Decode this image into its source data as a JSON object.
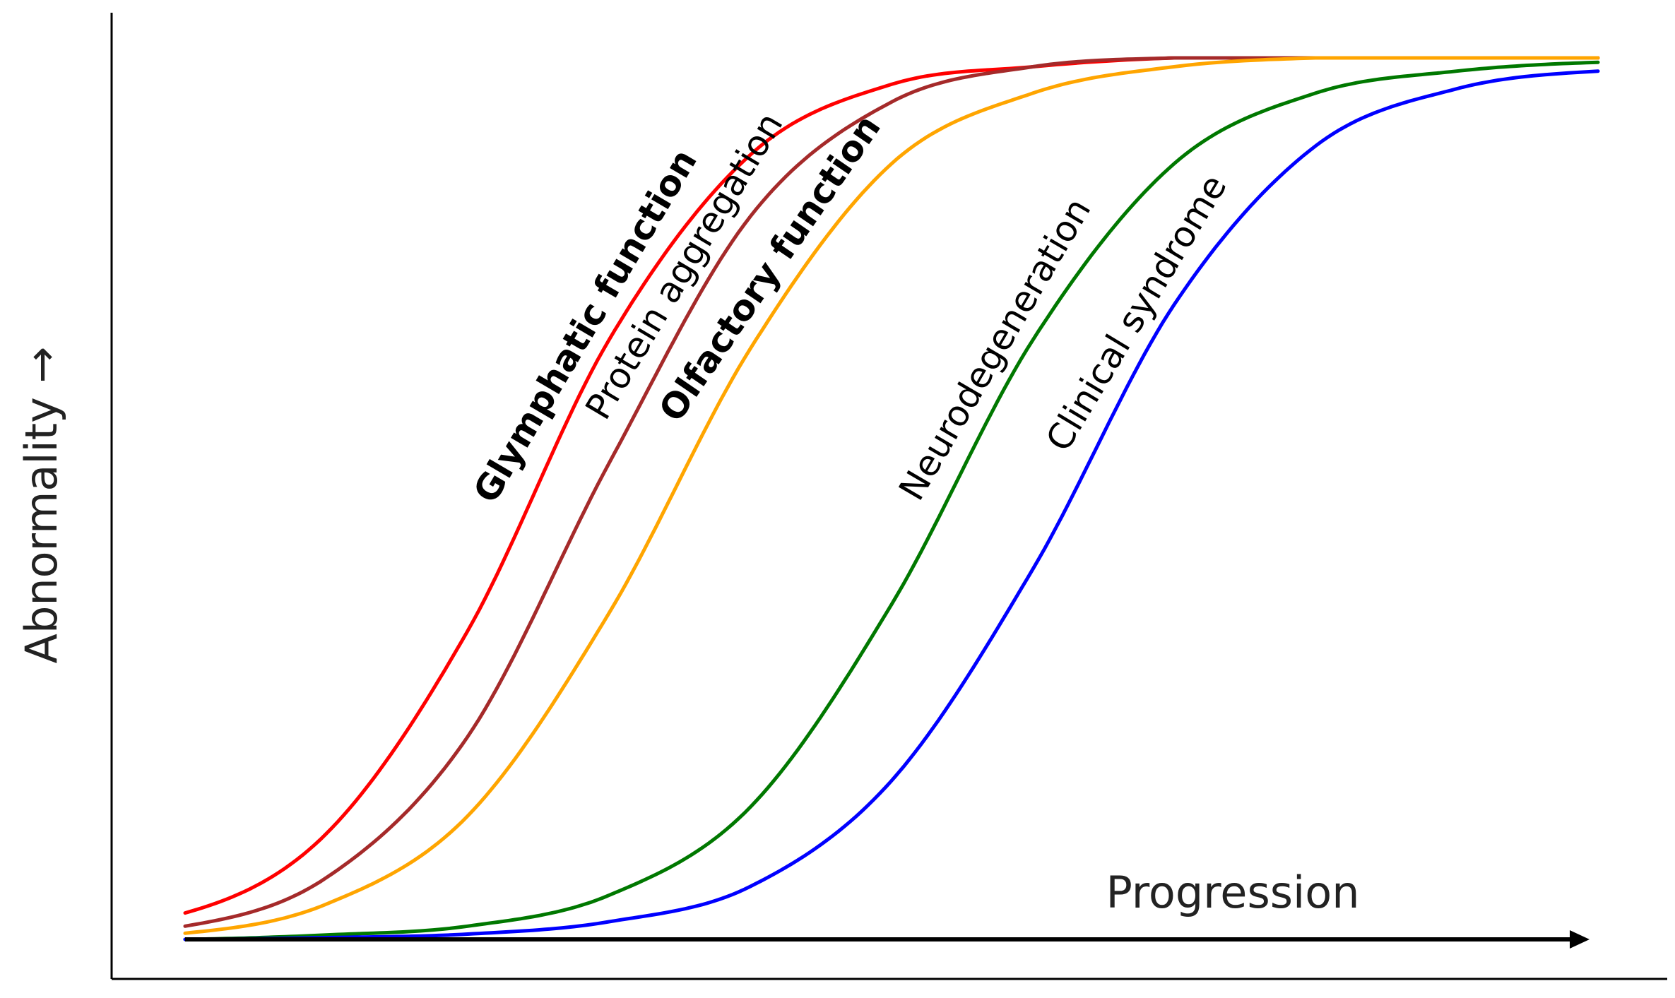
{
  "chart_data": {
    "type": "line",
    "title": "",
    "xlabel": "Progression",
    "ylabel": "Abnormality →",
    "xlim": [
      0,
      1
    ],
    "ylim": [
      0,
      1
    ],
    "grid": false,
    "legend": "none",
    "series": [
      {
        "name": "Glymphatic function",
        "color": "#ff0000",
        "bold": true,
        "x": [
          0,
          0.1,
          0.2,
          0.3,
          0.4,
          0.5,
          0.6,
          0.7,
          0.8,
          0.9,
          1.0
        ],
        "y": [
          0.03,
          0.12,
          0.35,
          0.68,
          0.89,
          0.97,
          0.99,
          1.0,
          1.0,
          1.0,
          1.0
        ]
      },
      {
        "name": "Protein aggregation",
        "color": "#a52a2a",
        "bold": false,
        "x": [
          0,
          0.1,
          0.2,
          0.3,
          0.4,
          0.5,
          0.6,
          0.7,
          0.8,
          0.9,
          1.0
        ],
        "y": [
          0.015,
          0.07,
          0.23,
          0.54,
          0.82,
          0.95,
          0.99,
          1.0,
          1.0,
          1.0,
          1.0
        ]
      },
      {
        "name": "Olfactory function",
        "color": "#ffa500",
        "bold": true,
        "x": [
          0,
          0.1,
          0.2,
          0.3,
          0.4,
          0.5,
          0.6,
          0.7,
          0.8,
          0.9,
          1.0
        ],
        "y": [
          0.007,
          0.04,
          0.14,
          0.37,
          0.67,
          0.88,
          0.96,
          0.99,
          1.0,
          1.0,
          1.0
        ]
      },
      {
        "name": "Neurodegeneration",
        "color": "#007800",
        "bold": false,
        "x": [
          0,
          0.1,
          0.2,
          0.3,
          0.4,
          0.5,
          0.6,
          0.7,
          0.8,
          0.9,
          1.0
        ],
        "y": [
          0.0,
          0.005,
          0.015,
          0.05,
          0.15,
          0.38,
          0.68,
          0.88,
          0.96,
          0.985,
          0.995
        ]
      },
      {
        "name": "Clinical syndrome",
        "color": "#0000ff",
        "bold": false,
        "x": [
          0,
          0.1,
          0.2,
          0.3,
          0.4,
          0.5,
          0.6,
          0.7,
          0.8,
          0.9,
          1.0
        ],
        "y": [
          0.0,
          0.002,
          0.006,
          0.02,
          0.06,
          0.18,
          0.42,
          0.72,
          0.9,
          0.965,
          0.985
        ]
      }
    ],
    "annotations": [
      {
        "text": "Glymphatic function",
        "series": 0,
        "at_x": 0.3
      },
      {
        "text": "Protein aggregation",
        "series": 1,
        "at_x": 0.37
      },
      {
        "text": "Olfactory function",
        "series": 2,
        "at_x": 0.43
      },
      {
        "text": "Neurodegeneration",
        "series": 3,
        "at_x": 0.59
      },
      {
        "text": "Clinical syndrome",
        "series": 4,
        "at_x": 0.69
      }
    ]
  }
}
